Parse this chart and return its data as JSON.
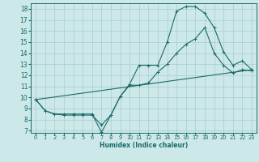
{
  "xlabel": "Humidex (Indice chaleur)",
  "bg_color": "#cce8e8",
  "line_color": "#1a6b6b",
  "grid_color": "#aacccc",
  "xlim": [
    -0.5,
    23.5
  ],
  "ylim": [
    6.8,
    18.5
  ],
  "yticks": [
    7,
    8,
    9,
    10,
    11,
    12,
    13,
    14,
    15,
    16,
    17,
    18
  ],
  "xticks": [
    0,
    1,
    2,
    3,
    4,
    5,
    6,
    7,
    8,
    9,
    10,
    11,
    12,
    13,
    14,
    15,
    16,
    17,
    18,
    19,
    20,
    21,
    22,
    23
  ],
  "line1_x": [
    0,
    1,
    2,
    3,
    4,
    5,
    6,
    7,
    8,
    9,
    10,
    11,
    12,
    13,
    14,
    15,
    16,
    17,
    18,
    19,
    20,
    21,
    22,
    23
  ],
  "line1_y": [
    9.8,
    8.8,
    8.5,
    8.5,
    8.5,
    8.5,
    8.5,
    6.85,
    8.4,
    10.1,
    11.2,
    12.9,
    12.9,
    12.9,
    15.0,
    17.8,
    18.2,
    18.2,
    17.6,
    16.3,
    14.1,
    12.9,
    13.3,
    12.5
  ],
  "line2_x": [
    0,
    1,
    2,
    3,
    4,
    5,
    6,
    7,
    8,
    9,
    10,
    11,
    12,
    13,
    14,
    15,
    16,
    17,
    18,
    19,
    20,
    21,
    22,
    23
  ],
  "line2_y": [
    9.8,
    8.8,
    8.5,
    8.4,
    8.4,
    8.4,
    8.4,
    7.5,
    8.4,
    10.1,
    11.1,
    11.1,
    11.3,
    12.3,
    13.0,
    14.0,
    14.8,
    15.3,
    16.3,
    14.0,
    12.9,
    12.2,
    12.5,
    12.4
  ],
  "line3_x": [
    0,
    23
  ],
  "line3_y": [
    9.8,
    12.5
  ]
}
